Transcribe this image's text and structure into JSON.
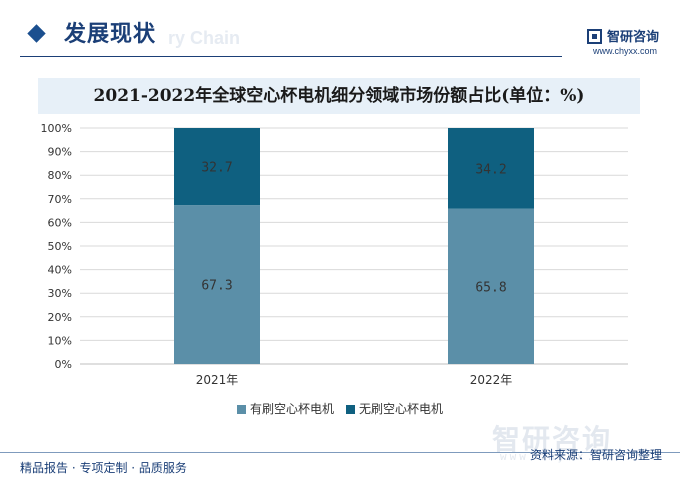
{
  "header": {
    "section_title": "发展现状",
    "section_watermark": "ry Chain",
    "brand_name": "智研咨询",
    "brand_url": "www.chyxx.com"
  },
  "colors": {
    "series_1": "#5b8fa8",
    "series_2": "#0f6080",
    "header": "#1b3f77",
    "title_bg": "#e7f0f8"
  },
  "chart_data": {
    "type": "bar",
    "stacked": true,
    "title": "2021-2022年全球空心杯电机细分领域市场份额占比(单位：%)",
    "categories": [
      "2021年",
      "2022年"
    ],
    "series": [
      {
        "name": "有刷空心杯电机",
        "values": [
          67.3,
          65.8
        ]
      },
      {
        "name": "无刷空心杯电机",
        "values": [
          32.7,
          34.2
        ]
      }
    ],
    "y_ticks": [
      "0%",
      "10%",
      "20%",
      "30%",
      "40%",
      "50%",
      "60%",
      "70%",
      "80%",
      "90%",
      "100%"
    ],
    "ylim": [
      0,
      100
    ],
    "grid": true,
    "legend_position": "bottom"
  },
  "footer": {
    "left": "精品报告 · 专项定制 · 品质服务",
    "right": "资料来源：智研咨询整理",
    "watermark": "智研咨询",
    "watermark_url": "www.chyxx.com"
  }
}
